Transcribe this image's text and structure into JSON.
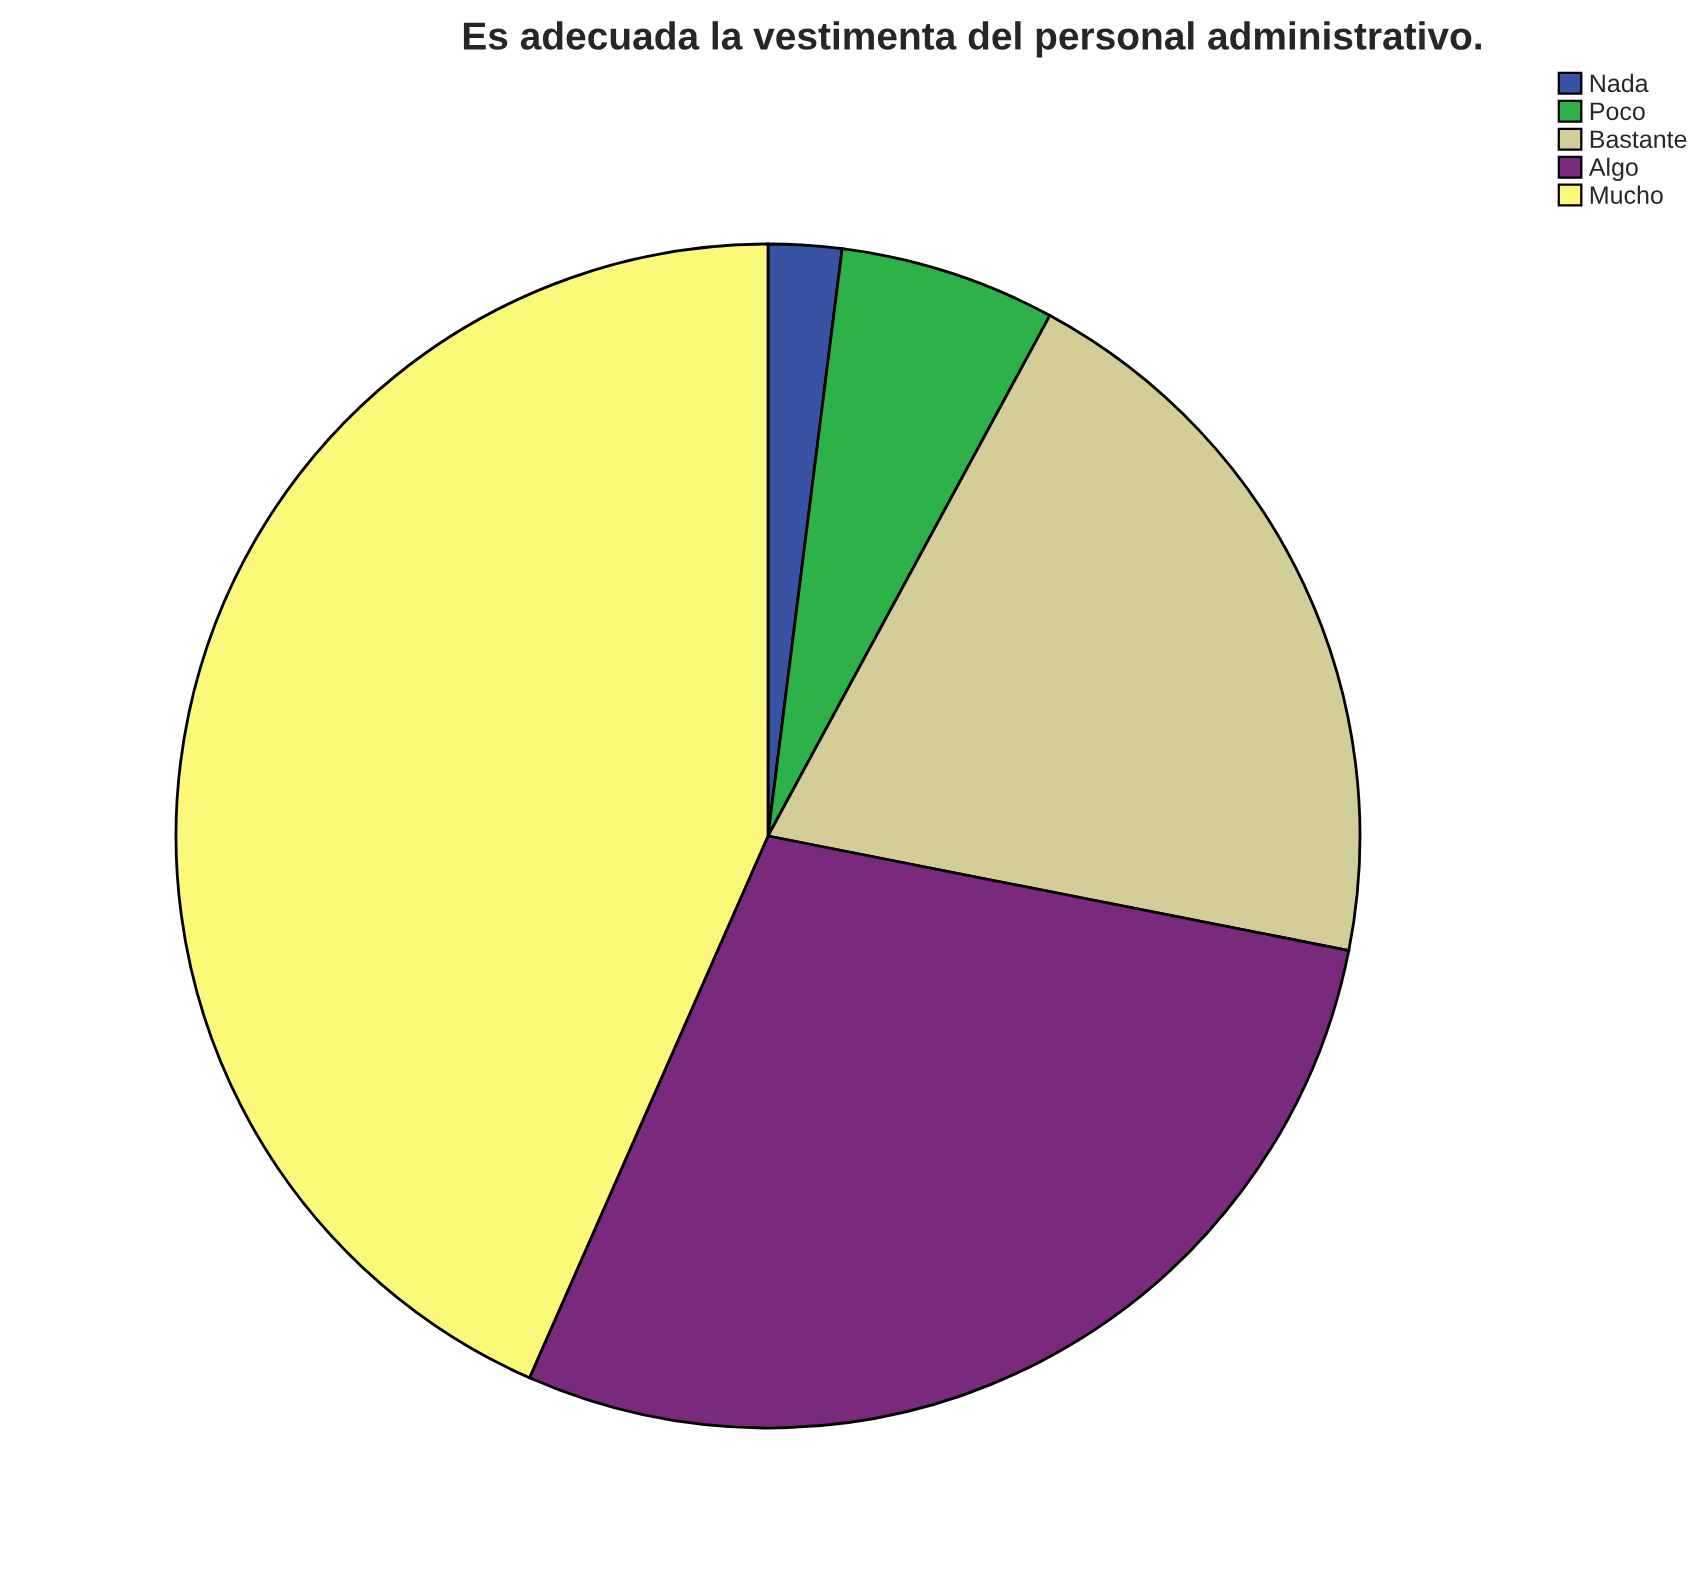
{
  "chart_data": {
    "type": "pie",
    "title": "Es adecuada la vestimenta del personal administrativo.",
    "categories": [
      "Nada",
      "Poco",
      "Bastante",
      "Algo",
      "Mucho"
    ],
    "values": [
      2.0,
      5.9,
      20.2,
      28.5,
      43.4
    ],
    "colors": [
      "#3953a4",
      "#2db24a",
      "#d3ce97",
      "#792a7c",
      "#fbf97a"
    ],
    "legend": "top right"
  }
}
